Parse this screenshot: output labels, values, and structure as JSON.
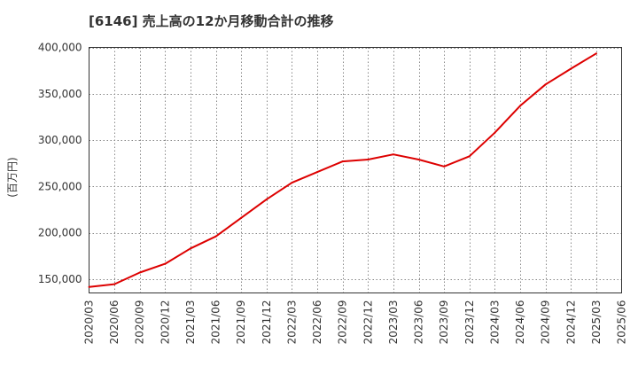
{
  "chart_data": {
    "type": "line",
    "title": "[6146]  売上高の12か月移動合計の推移",
    "ylabel": "(百万円)",
    "xlabel": "",
    "ylim": [
      135000,
      400000
    ],
    "yticks": [
      150000,
      200000,
      250000,
      300000,
      350000,
      400000
    ],
    "ytick_labels": [
      "150,000",
      "200,000",
      "250,000",
      "300,000",
      "350,000",
      "400,000"
    ],
    "categories": [
      "2020/03",
      "2020/06",
      "2020/09",
      "2020/12",
      "2021/03",
      "2021/06",
      "2021/09",
      "2021/12",
      "2022/03",
      "2022/06",
      "2022/09",
      "2022/12",
      "2023/03",
      "2023/06",
      "2023/09",
      "2023/12",
      "2024/03",
      "2024/06",
      "2024/09",
      "2024/12",
      "2025/03",
      "2025/06"
    ],
    "series": [
      {
        "name": "売上高の12か月移動合計",
        "color": "#dd0000",
        "values": [
          141500,
          144500,
          157000,
          166500,
          183000,
          196000,
          216000,
          236000,
          254000,
          265500,
          277000,
          279000,
          284500,
          279000,
          271500,
          282500,
          308000,
          337000,
          360000,
          377000,
          393500,
          null
        ]
      }
    ],
    "grid": true
  }
}
